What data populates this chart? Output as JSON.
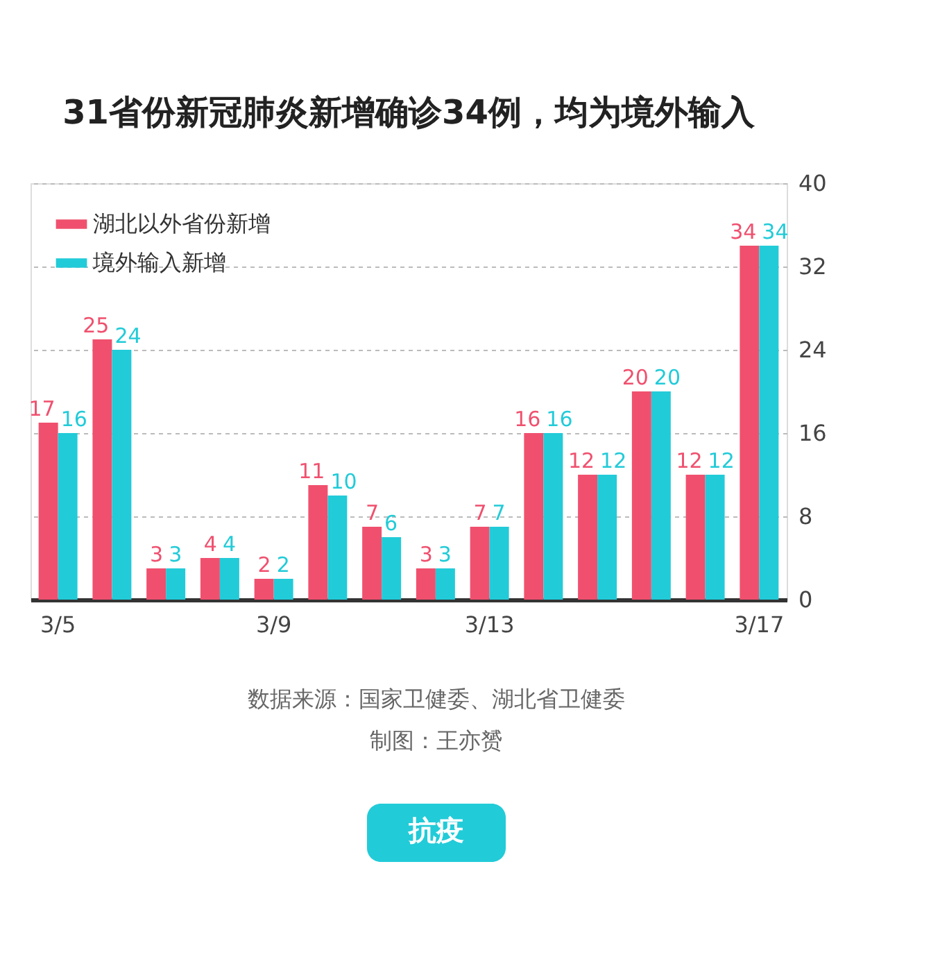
{
  "chart_data": {
    "type": "bar",
    "title": "31省份新冠肺炎新增确诊34例，均为境外输入",
    "categories": [
      "3/5",
      null,
      null,
      null,
      "3/9",
      null,
      null,
      null,
      "3/13",
      null,
      null,
      null,
      null,
      "3/17"
    ],
    "series": [
      {
        "name": "湖北以外省份新增",
        "color": "#f0506e",
        "values": [
          17,
          25,
          3,
          4,
          2,
          11,
          7,
          3,
          7,
          16,
          12,
          20,
          12,
          34
        ]
      },
      {
        "name": "境外输入新增",
        "color": "#22cbd8",
        "values": [
          16,
          24,
          3,
          4,
          2,
          10,
          6,
          3,
          7,
          16,
          12,
          20,
          12,
          34
        ]
      }
    ],
    "ylim": [
      0,
      40
    ],
    "yticks": [
      0,
      8,
      16,
      24,
      32,
      40
    ],
    "grid": "y",
    "legend": "top left",
    "data_labels": true,
    "annotations": [
      "数据来源：国家卫健委、湖北省卫健委",
      "制图：王亦赟",
      "抗疫"
    ]
  }
}
